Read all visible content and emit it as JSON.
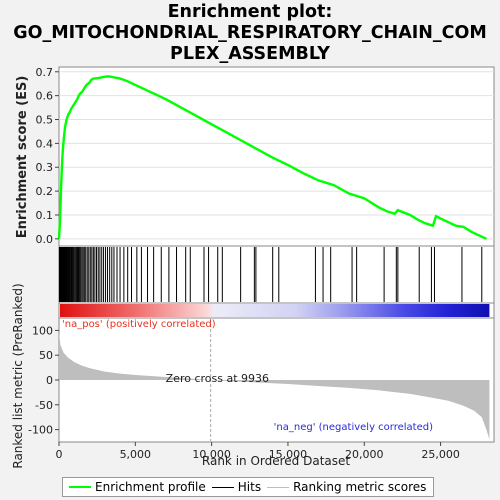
{
  "title": "Enrichment plot: GO_MITOCHONDRIAL_RESPIRATORY_CHAIN_COMPLEX_ASSEMBLY",
  "title_lines": [
    "Enrichment plot:",
    "GO_MITOCHONDRIAL_RESPIRATORY_CHAIN_COM",
    "PLEX_ASSEMBLY"
  ],
  "colors": {
    "enrichment": "#00ff00",
    "hits": "#000000",
    "metric": "#bebebe",
    "pos_label": "#e8311e",
    "neg_label": "#2a2ad8",
    "zero_line": "#aaaaaa"
  },
  "chart_data": [
    {
      "type": "line",
      "name": "enrichment-profile",
      "ylabel": "Enrichment score (ES)",
      "xlim": [
        0,
        28500
      ],
      "ylim": [
        -0.03,
        0.72
      ],
      "yticks": [
        0.0,
        0.1,
        0.2,
        0.3,
        0.4,
        0.5,
        0.6,
        0.7
      ],
      "ytick_labels": [
        "0.0",
        "0.1",
        "0.2",
        "0.3",
        "0.4",
        "0.5",
        "0.6",
        "0.7"
      ],
      "x": [
        0,
        50,
        100,
        150,
        200,
        250,
        300,
        350,
        400,
        500,
        600,
        700,
        800,
        900,
        1000,
        1100,
        1200,
        1300,
        1400,
        1500,
        1600,
        1700,
        1800,
        1900,
        2000,
        2100,
        2200,
        2300,
        2500,
        2700,
        2900,
        3100,
        3300,
        3500,
        3700,
        4000,
        4500,
        5000,
        6000,
        7000,
        8000,
        9000,
        10000,
        11000,
        12000,
        13000,
        14000,
        15000,
        16000,
        17000,
        18000,
        19000,
        19500,
        20000,
        21000,
        21500,
        22000,
        22200,
        23000,
        23500,
        24000,
        24500,
        24700,
        25000,
        26000,
        26500,
        27000,
        28000
      ],
      "y": [
        0.0,
        0.06,
        0.14,
        0.24,
        0.32,
        0.37,
        0.41,
        0.44,
        0.47,
        0.5,
        0.52,
        0.53,
        0.545,
        0.555,
        0.565,
        0.575,
        0.585,
        0.6,
        0.61,
        0.615,
        0.625,
        0.635,
        0.645,
        0.65,
        0.655,
        0.665,
        0.67,
        0.672,
        0.673,
        0.675,
        0.678,
        0.68,
        0.68,
        0.678,
        0.675,
        0.672,
        0.66,
        0.645,
        0.615,
        0.585,
        0.55,
        0.515,
        0.48,
        0.445,
        0.41,
        0.375,
        0.34,
        0.31,
        0.275,
        0.245,
        0.225,
        0.19,
        0.18,
        0.17,
        0.13,
        0.115,
        0.105,
        0.12,
        0.1,
        0.08,
        0.065,
        0.055,
        0.095,
        0.085,
        0.055,
        0.05,
        0.03,
        0.0
      ]
    },
    {
      "type": "scatter",
      "name": "hits",
      "x": [
        30,
        60,
        90,
        120,
        150,
        180,
        210,
        240,
        270,
        300,
        340,
        380,
        420,
        460,
        500,
        550,
        600,
        650,
        700,
        760,
        820,
        880,
        940,
        1000,
        1070,
        1140,
        1210,
        1280,
        1350,
        1420,
        1500,
        1580,
        1660,
        1750,
        1850,
        1950,
        2050,
        2150,
        2250,
        2350,
        2460,
        2570,
        2680,
        2800,
        2920,
        3050,
        3180,
        3320,
        3460,
        3600,
        3800,
        4000,
        4250,
        4500,
        4750,
        5100,
        5400,
        5800,
        6200,
        6700,
        7200,
        7700,
        8300,
        8600,
        9500,
        9800,
        10400,
        10700,
        11900,
        12800,
        12900,
        14000,
        14400,
        16800,
        17300,
        17800,
        19200,
        19500,
        21300,
        22100,
        22200,
        23600,
        24400,
        24600,
        26400,
        27700
      ]
    },
    {
      "type": "area",
      "name": "ranking-metric",
      "ylabel": "Ranked list metric (PreRanked)",
      "xlabel": "Rank in Ordered Dataset",
      "xlim": [
        0,
        28500
      ],
      "ylim": [
        -125,
        125
      ],
      "yticks": [
        -100,
        -50,
        0,
        50,
        100
      ],
      "ytick_labels": [
        "-100",
        "-50",
        "0",
        "50",
        "100"
      ],
      "xticks": [
        0,
        5000,
        10000,
        15000,
        20000,
        25000
      ],
      "xtick_labels": [
        "0",
        "5,000",
        "10,000",
        "15,000",
        "20,000",
        "25,000"
      ],
      "x": [
        0,
        100,
        300,
        600,
        1000,
        1500,
        2000,
        3000,
        4000,
        5000,
        6000,
        7000,
        8000,
        9000,
        9936,
        11000,
        13000,
        15000,
        17000,
        19000,
        21000,
        23000,
        24500,
        25500,
        26500,
        27200,
        27700,
        28000,
        28200
      ],
      "y": [
        95,
        70,
        55,
        45,
        36,
        29,
        24,
        17,
        13,
        10,
        8,
        6,
        4,
        2,
        0,
        -2,
        -5,
        -8,
        -12,
        -16,
        -21,
        -28,
        -36,
        -42,
        -52,
        -62,
        -75,
        -100,
        -120
      ],
      "zero_cross_label": "Zero cross at 9936",
      "zero_cross": 9936,
      "pos_label": "'na_pos' (positively correlated)",
      "neg_label": "'na_neg' (negatively correlated)"
    }
  ],
  "legend": {
    "items": [
      {
        "label": "Enrichment profile"
      },
      {
        "label": "Hits"
      },
      {
        "label": "Ranking metric scores"
      }
    ]
  }
}
